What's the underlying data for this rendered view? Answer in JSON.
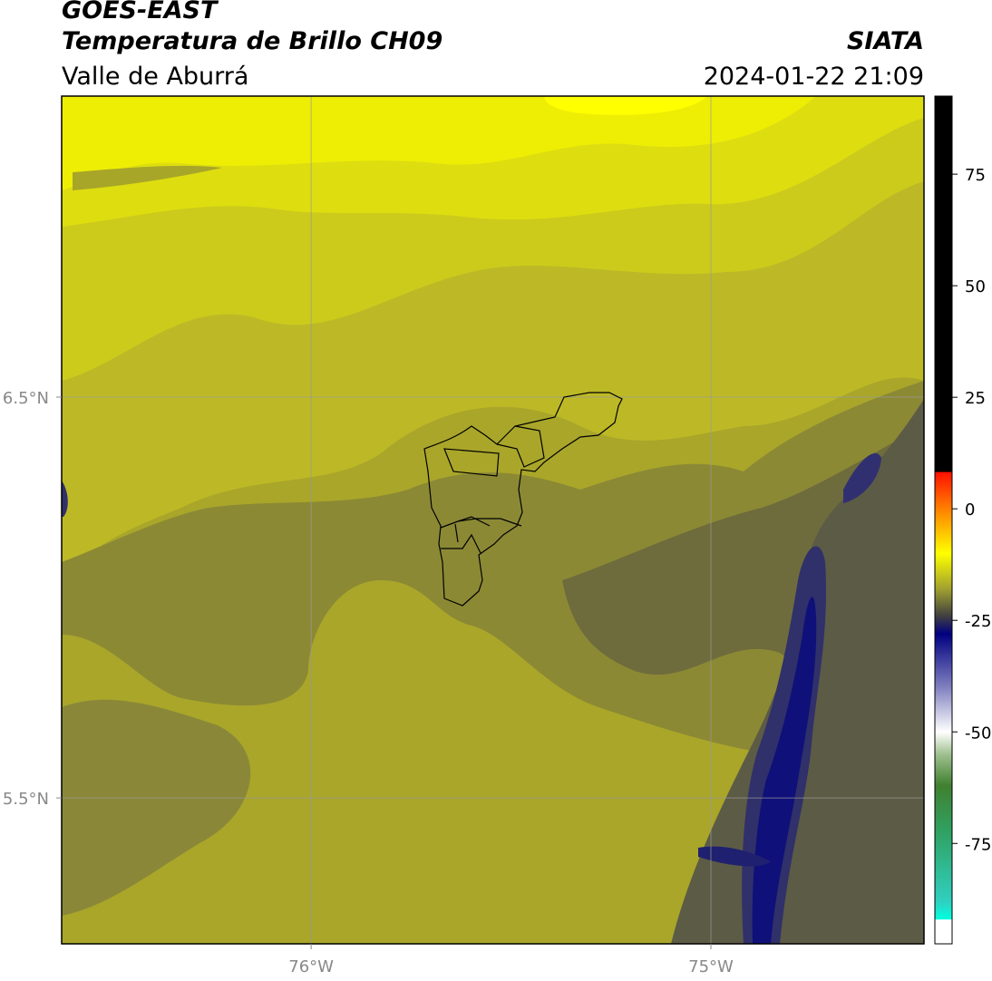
{
  "chart_data": {
    "type": "map",
    "title": "GOES-EAST",
    "subtitle": "Temperatura de Brillo CH09",
    "region": "Valle de Aburrá",
    "source": "SIATA",
    "timestamp": "2024-01-22 21:09",
    "xlim": [
      -76.624,
      -74.467
    ],
    "ylim": [
      5.136,
      7.251
    ],
    "xticks": [
      {
        "value": -76,
        "label": "76°W"
      },
      {
        "value": -75,
        "label": "75°W"
      }
    ],
    "yticks": [
      {
        "value": 6.5,
        "label": "6.5°N"
      },
      {
        "value": 5.5,
        "label": "5.5°N"
      }
    ],
    "grid": true,
    "colorbar": {
      "lim": [
        -97.5,
        92.5
      ],
      "ticks": [
        75,
        50,
        25,
        0,
        -25,
        -50,
        -75
      ],
      "stops": [
        {
          "value": 92.5,
          "color": "#000000"
        },
        {
          "value": 8.3,
          "color": "#000000"
        },
        {
          "value": 8.2,
          "color": "#ff1000"
        },
        {
          "value": 0,
          "color": "#ff8000"
        },
        {
          "value": -10,
          "color": "#ffff00"
        },
        {
          "value": -18,
          "color": "#a0a030"
        },
        {
          "value": -24,
          "color": "#404040"
        },
        {
          "value": -28,
          "color": "#000080"
        },
        {
          "value": -40,
          "color": "#8080c0"
        },
        {
          "value": -50,
          "color": "#ffffff"
        },
        {
          "value": -55,
          "color": "#a0c090"
        },
        {
          "value": -62,
          "color": "#408030"
        },
        {
          "value": -72,
          "color": "#30a060"
        },
        {
          "value": -88,
          "color": "#30d0c0"
        },
        {
          "value": -92,
          "color": "#00ffe0"
        },
        {
          "value": -92.1,
          "color": "#ffffff"
        },
        {
          "value": -97.5,
          "color": "#ffffff"
        }
      ]
    }
  }
}
